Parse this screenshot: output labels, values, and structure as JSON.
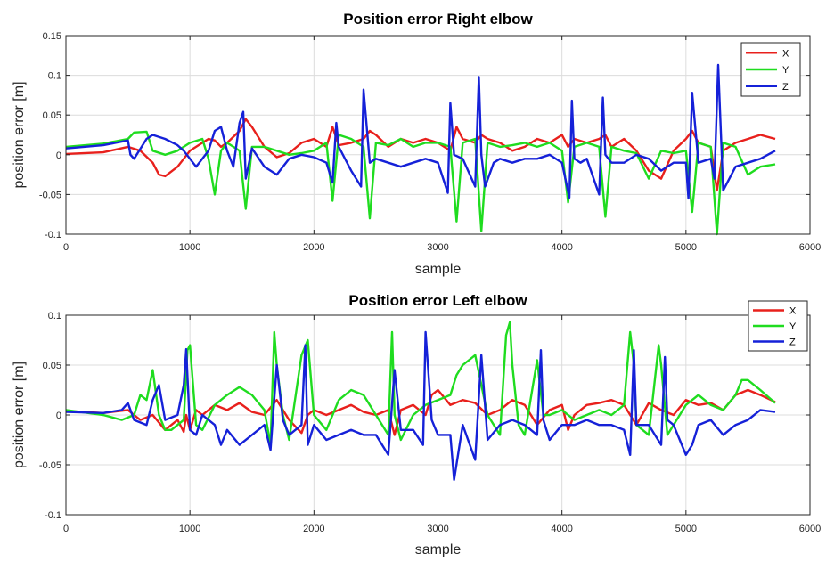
{
  "chart_data": [
    {
      "type": "line",
      "title": "Position error Right elbow",
      "xlabel": "sample",
      "ylabel": "position error [m]",
      "xlim": [
        0,
        6000
      ],
      "ylim": [
        -0.1,
        0.15
      ],
      "xticks": [
        0,
        1000,
        2000,
        3000,
        4000,
        5000,
        6000
      ],
      "yticks": [
        -0.1,
        -0.05,
        0,
        0.05,
        0.1,
        0.15
      ],
      "xtick_labels": [
        "0",
        "1000",
        "2000",
        "3000",
        "4000",
        "5000",
        "6000"
      ],
      "ytick_labels": [
        "-0.1",
        "-0.05",
        "0",
        "0.05",
        "0.1",
        "0.15"
      ],
      "grid": true,
      "legend_position": "top-right",
      "series": [
        {
          "name": "X",
          "color": "#e8201c",
          "x": [
            0,
            300,
            500,
            600,
            700,
            750,
            800,
            900,
            1000,
            1100,
            1150,
            1200,
            1250,
            1300,
            1400,
            1450,
            1500,
            1600,
            1700,
            1800,
            1900,
            2000,
            2100,
            2150,
            2200,
            2300,
            2400,
            2450,
            2500,
            2600,
            2700,
            2800,
            2900,
            3000,
            3100,
            3150,
            3200,
            3300,
            3350,
            3400,
            3500,
            3600,
            3700,
            3800,
            3900,
            4000,
            4050,
            4100,
            4200,
            4300,
            4350,
            4400,
            4500,
            4600,
            4700,
            4800,
            4900,
            5000,
            5050,
            5100,
            5200,
            5250,
            5300,
            5400,
            5500,
            5600,
            5720
          ],
          "y": [
            0.001,
            0.003,
            0.01,
            0.005,
            -0.01,
            -0.025,
            -0.027,
            -0.015,
            0.005,
            0.015,
            0.02,
            0.018,
            0.01,
            0.015,
            0.03,
            0.045,
            0.035,
            0.01,
            -0.003,
            0.002,
            0.015,
            0.02,
            0.01,
            0.035,
            0.012,
            0.015,
            0.02,
            0.03,
            0.025,
            0.01,
            0.02,
            0.015,
            0.02,
            0.015,
            0.005,
            0.035,
            0.02,
            0.015,
            0.025,
            0.02,
            0.015,
            0.005,
            0.01,
            0.02,
            0.015,
            0.025,
            0.01,
            0.02,
            0.015,
            0.02,
            0.025,
            0.01,
            0.02,
            0.005,
            -0.02,
            -0.03,
            0.005,
            0.02,
            0.03,
            0.015,
            0.01,
            -0.045,
            0.005,
            0.015,
            0.02,
            0.025,
            0.02
          ]
        },
        {
          "name": "Y",
          "color": "#1fdc1f",
          "x": [
            0,
            300,
            500,
            550,
            650,
            700,
            800,
            900,
            1000,
            1100,
            1150,
            1200,
            1250,
            1300,
            1400,
            1450,
            1500,
            1600,
            1700,
            1800,
            1900,
            2000,
            2100,
            2150,
            2200,
            2300,
            2400,
            2450,
            2500,
            2600,
            2700,
            2800,
            2900,
            3000,
            3100,
            3150,
            3200,
            3300,
            3350,
            3400,
            3500,
            3600,
            3700,
            3800,
            3900,
            4000,
            4050,
            4100,
            4200,
            4300,
            4350,
            4400,
            4500,
            4600,
            4700,
            4800,
            4900,
            5000,
            5050,
            5100,
            5200,
            5250,
            5300,
            5400,
            5500,
            5600,
            5720
          ],
          "y": [
            0.01,
            0.014,
            0.02,
            0.028,
            0.029,
            0.005,
            0.0,
            0.005,
            0.015,
            0.02,
            -0.005,
            -0.05,
            0.005,
            0.015,
            0.005,
            -0.068,
            0.01,
            0.01,
            0.005,
            0.0,
            0.002,
            0.005,
            0.015,
            -0.058,
            0.025,
            0.02,
            0.01,
            -0.08,
            0.015,
            0.012,
            0.02,
            0.01,
            0.015,
            0.015,
            0.01,
            -0.084,
            0.015,
            0.02,
            -0.096,
            0.015,
            0.01,
            0.012,
            0.015,
            0.01,
            0.015,
            0.005,
            -0.06,
            0.01,
            0.015,
            0.01,
            -0.078,
            0.01,
            0.005,
            0.002,
            -0.03,
            0.005,
            0.002,
            0.005,
            -0.072,
            0.015,
            0.01,
            -0.1,
            0.015,
            0.01,
            -0.025,
            -0.015,
            -0.012
          ]
        },
        {
          "name": "Z",
          "color": "#1521d8",
          "x": [
            0,
            300,
            500,
            520,
            550,
            650,
            700,
            800,
            900,
            950,
            1050,
            1100,
            1150,
            1200,
            1250,
            1300,
            1350,
            1400,
            1430,
            1450,
            1500,
            1600,
            1700,
            1800,
            1900,
            2000,
            2100,
            2150,
            2180,
            2200,
            2300,
            2380,
            2400,
            2450,
            2500,
            2600,
            2700,
            2800,
            2900,
            3000,
            3080,
            3100,
            3130,
            3200,
            3300,
            3330,
            3350,
            3380,
            3450,
            3500,
            3600,
            3700,
            3800,
            3900,
            4000,
            4060,
            4080,
            4100,
            4150,
            4200,
            4300,
            4330,
            4350,
            4400,
            4500,
            4600,
            4700,
            4800,
            4900,
            5000,
            5020,
            5050,
            5100,
            5200,
            5230,
            5260,
            5300,
            5400,
            5500,
            5600,
            5720
          ],
          "y": [
            0.008,
            0.012,
            0.018,
            0.0,
            -0.005,
            0.02,
            0.025,
            0.02,
            0.012,
            0.005,
            -0.015,
            -0.005,
            0.005,
            0.03,
            0.035,
            0.005,
            -0.015,
            0.04,
            0.054,
            -0.03,
            0.008,
            -0.015,
            -0.025,
            -0.005,
            0.0,
            -0.003,
            -0.01,
            -0.035,
            0.04,
            0.01,
            -0.02,
            -0.04,
            0.082,
            -0.01,
            -0.005,
            -0.01,
            -0.015,
            -0.01,
            -0.005,
            -0.01,
            -0.048,
            0.065,
            0.0,
            -0.005,
            -0.04,
            0.098,
            0.0,
            -0.04,
            -0.01,
            -0.005,
            -0.01,
            -0.005,
            -0.005,
            0.0,
            -0.01,
            -0.054,
            0.068,
            -0.005,
            -0.01,
            -0.005,
            -0.05,
            0.072,
            0.0,
            -0.01,
            -0.01,
            0.0,
            -0.005,
            -0.02,
            -0.01,
            -0.01,
            -0.055,
            0.078,
            -0.01,
            -0.005,
            -0.03,
            0.113,
            -0.045,
            -0.015,
            -0.01,
            -0.005,
            0.005
          ]
        }
      ]
    },
    {
      "type": "line",
      "title": "Position error Left elbow",
      "xlabel": "sample",
      "ylabel": "position error [m]",
      "xlim": [
        0,
        6000
      ],
      "ylim": [
        -0.1,
        0.1
      ],
      "xticks": [
        0,
        1000,
        2000,
        3000,
        4000,
        5000,
        6000
      ],
      "yticks": [
        -0.1,
        -0.05,
        0,
        0.05,
        0.1
      ],
      "xtick_labels": [
        "0",
        "1000",
        "2000",
        "3000",
        "4000",
        "5000",
        "6000"
      ],
      "ytick_labels": [
        "-0.1",
        "-0.05",
        "0",
        "0.05",
        "0.1"
      ],
      "grid": true,
      "legend_position": "top-right",
      "series": [
        {
          "name": "X",
          "color": "#e8201c",
          "x": [
            0,
            300,
            500,
            550,
            600,
            700,
            800,
            900,
            950,
            970,
            1000,
            1050,
            1100,
            1200,
            1300,
            1400,
            1500,
            1600,
            1700,
            1800,
            1900,
            1950,
            2000,
            2100,
            2200,
            2300,
            2400,
            2500,
            2600,
            2650,
            2700,
            2800,
            2900,
            2950,
            3000,
            3100,
            3200,
            3300,
            3400,
            3500,
            3600,
            3700,
            3800,
            3900,
            4000,
            4050,
            4100,
            4200,
            4300,
            4400,
            4500,
            4600,
            4700,
            4800,
            4900,
            5000,
            5100,
            5200,
            5300,
            5400,
            5500,
            5600,
            5720
          ],
          "y": [
            0.004,
            0.002,
            0.005,
            0.0,
            -0.005,
            0.0,
            -0.015,
            -0.005,
            -0.017,
            0.0,
            -0.015,
            0.005,
            0.0,
            0.01,
            0.005,
            0.012,
            0.003,
            0.0,
            0.015,
            -0.005,
            -0.018,
            0.0,
            0.005,
            0.0,
            0.005,
            0.01,
            0.003,
            0.0,
            0.005,
            -0.02,
            0.005,
            0.01,
            0.0,
            0.02,
            0.025,
            0.01,
            0.015,
            0.012,
            0.0,
            0.005,
            0.015,
            0.01,
            -0.01,
            0.005,
            0.01,
            -0.015,
            0.0,
            0.01,
            0.012,
            0.015,
            0.01,
            -0.01,
            0.012,
            0.005,
            0.0,
            0.015,
            0.01,
            0.012,
            0.005,
            0.02,
            0.025,
            0.02,
            0.013
          ]
        },
        {
          "name": "Y",
          "color": "#1fdc1f",
          "x": [
            0,
            300,
            450,
            550,
            600,
            650,
            700,
            750,
            800,
            850,
            950,
            980,
            1000,
            1050,
            1100,
            1200,
            1300,
            1400,
            1500,
            1600,
            1650,
            1680,
            1700,
            1750,
            1800,
            1900,
            1950,
            2000,
            2100,
            2200,
            2300,
            2400,
            2500,
            2600,
            2630,
            2650,
            2700,
            2800,
            2900,
            3000,
            3100,
            3150,
            3200,
            3300,
            3400,
            3500,
            3550,
            3580,
            3600,
            3650,
            3700,
            3800,
            3850,
            3900,
            4000,
            4100,
            4200,
            4300,
            4400,
            4500,
            4550,
            4580,
            4600,
            4700,
            4780,
            4800,
            4850,
            4900,
            5000,
            5100,
            5200,
            5300,
            5400,
            5450,
            5500,
            5600,
            5720
          ],
          "y": [
            0.005,
            0.0,
            -0.005,
            0.0,
            0.02,
            0.015,
            0.045,
            0.0,
            -0.015,
            -0.015,
            -0.005,
            0.065,
            0.07,
            -0.01,
            -0.015,
            0.01,
            0.02,
            0.028,
            0.02,
            0.005,
            -0.03,
            0.083,
            0.05,
            0.0,
            -0.025,
            0.06,
            0.075,
            0.0,
            -0.015,
            0.015,
            0.025,
            0.02,
            0.0,
            -0.02,
            0.083,
            0.0,
            -0.025,
            0.0,
            0.01,
            0.015,
            0.02,
            0.04,
            0.05,
            0.06,
            0.0,
            -0.02,
            0.08,
            0.093,
            0.05,
            -0.01,
            -0.02,
            0.055,
            0.0,
            0.0,
            0.005,
            -0.005,
            0.0,
            0.005,
            0.0,
            0.01,
            0.083,
            0.05,
            -0.01,
            -0.02,
            0.07,
            0.05,
            -0.02,
            -0.01,
            0.01,
            0.02,
            0.01,
            0.005,
            0.02,
            0.035,
            0.035,
            0.025,
            0.012
          ]
        },
        {
          "name": "Z",
          "color": "#1521d8",
          "x": [
            0,
            300,
            450,
            500,
            550,
            650,
            700,
            750,
            800,
            900,
            950,
            970,
            1000,
            1050,
            1100,
            1200,
            1250,
            1300,
            1400,
            1500,
            1600,
            1650,
            1700,
            1750,
            1800,
            1900,
            1930,
            1950,
            2000,
            2100,
            2200,
            2300,
            2400,
            2500,
            2600,
            2650,
            2700,
            2800,
            2880,
            2900,
            2950,
            3000,
            3100,
            3130,
            3200,
            3300,
            3350,
            3400,
            3500,
            3600,
            3700,
            3800,
            3830,
            3850,
            3900,
            4000,
            4100,
            4200,
            4300,
            4400,
            4500,
            4550,
            4580,
            4600,
            4700,
            4800,
            4830,
            4850,
            4900,
            5000,
            5050,
            5100,
            5200,
            5300,
            5400,
            5500,
            5600,
            5720
          ],
          "y": [
            0.003,
            0.002,
            0.005,
            0.012,
            -0.005,
            -0.01,
            0.015,
            0.03,
            -0.005,
            0.0,
            0.03,
            0.066,
            -0.015,
            -0.02,
            0.0,
            -0.01,
            -0.03,
            -0.015,
            -0.03,
            -0.02,
            -0.01,
            -0.035,
            0.05,
            -0.005,
            -0.02,
            -0.01,
            0.07,
            -0.03,
            -0.01,
            -0.025,
            -0.02,
            -0.015,
            -0.02,
            -0.02,
            -0.04,
            0.045,
            -0.015,
            -0.015,
            -0.03,
            0.083,
            -0.005,
            -0.02,
            -0.02,
            -0.065,
            -0.01,
            -0.045,
            0.06,
            -0.025,
            -0.01,
            -0.005,
            -0.01,
            -0.02,
            0.065,
            -0.005,
            -0.025,
            -0.01,
            -0.01,
            -0.005,
            -0.01,
            -0.01,
            -0.015,
            -0.04,
            0.065,
            -0.01,
            -0.01,
            -0.03,
            0.058,
            -0.005,
            -0.01,
            -0.04,
            -0.03,
            -0.01,
            -0.005,
            -0.02,
            -0.01,
            -0.005,
            0.005,
            0.003
          ]
        }
      ]
    }
  ]
}
